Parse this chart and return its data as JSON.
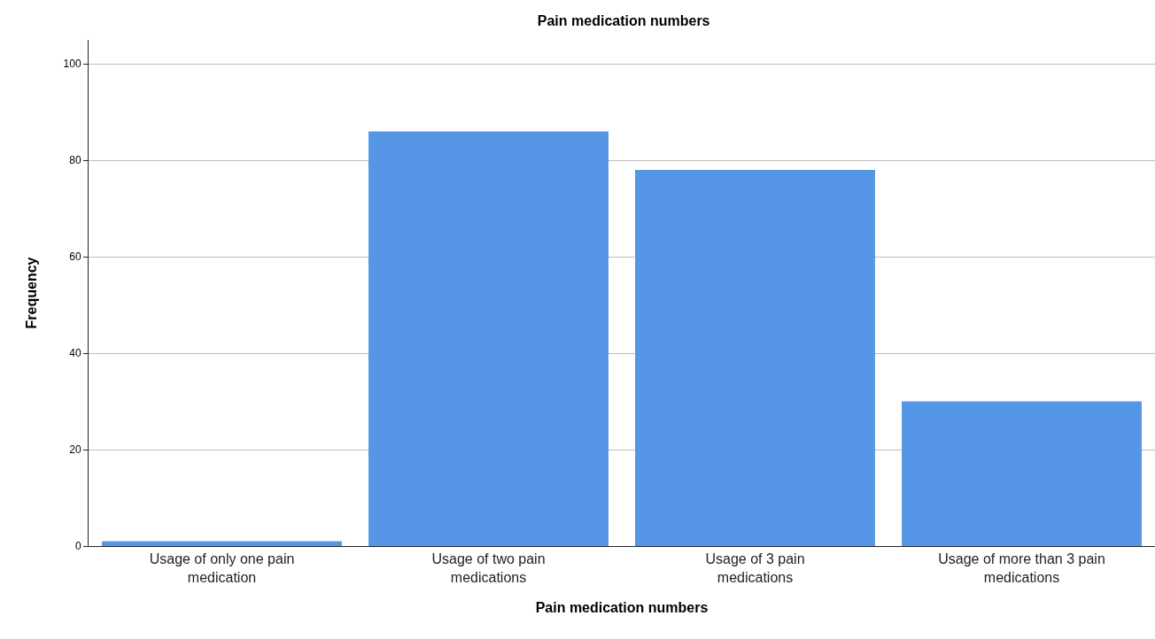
{
  "chart_data": {
    "type": "bar",
    "title": "Pain medication numbers",
    "xlabel": "Pain medication numbers",
    "ylabel": "Frequency",
    "categories": [
      "Usage of only one pain medication",
      "Usage of two pain medications",
      "Usage of 3 pain medications",
      "Usage of more than 3 pain medications"
    ],
    "values": [
      1,
      86,
      78,
      30
    ],
    "color": "#5596e6",
    "ylim": [
      0,
      105
    ],
    "yticks": [
      0,
      20,
      40,
      60,
      80,
      100
    ],
    "grid": "y"
  }
}
